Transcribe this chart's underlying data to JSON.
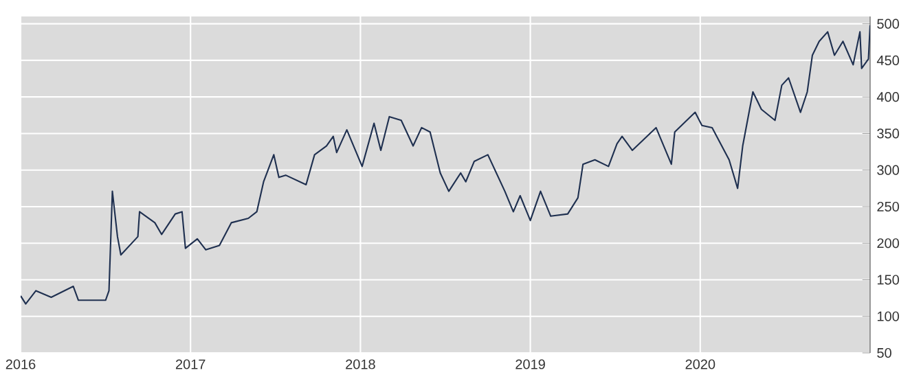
{
  "chart_data": {
    "type": "line",
    "color": "#1f3050",
    "x": [
      2016.0,
      2016.03,
      2016.09,
      2016.18,
      2016.31,
      2016.34,
      2016.5,
      2016.52,
      2016.53,
      2016.54,
      2016.57,
      2016.59,
      2016.69,
      2016.7,
      2016.79,
      2016.83,
      2016.91,
      2016.95,
      2016.97,
      2017.04,
      2017.09,
      2017.17,
      2017.24,
      2017.34,
      2017.39,
      2017.43,
      2017.49,
      2017.52,
      2017.56,
      2017.68,
      2017.73,
      2017.8,
      2017.84,
      2017.86,
      2017.92,
      2018.01,
      2018.08,
      2018.12,
      2018.17,
      2018.24,
      2018.31,
      2018.36,
      2018.41,
      2018.47,
      2018.52,
      2018.59,
      2018.62,
      2018.67,
      2018.75,
      2018.85,
      2018.9,
      2018.94,
      2019.0,
      2019.06,
      2019.12,
      2019.22,
      2019.28,
      2019.31,
      2019.38,
      2019.46,
      2019.51,
      2019.54,
      2019.6,
      2019.74,
      2019.83,
      2019.85,
      2019.97,
      2020.01,
      2020.07,
      2020.17,
      2020.22,
      2020.25,
      2020.31,
      2020.36,
      2020.44,
      2020.48,
      2020.52,
      2020.59,
      2020.63,
      2020.66,
      2020.7,
      2020.75,
      2020.79,
      2020.84,
      2020.9,
      2020.94,
      2020.95,
      2020.99,
      2021.0
    ],
    "values": [
      128,
      117,
      135,
      126,
      141,
      122,
      122,
      135,
      203,
      271,
      209,
      184,
      209,
      243,
      228,
      212,
      240,
      243,
      193,
      206,
      191,
      197,
      228,
      234,
      243,
      284,
      321,
      290,
      293,
      280,
      321,
      333,
      346,
      324,
      355,
      305,
      364,
      327,
      373,
      368,
      333,
      358,
      352,
      296,
      271,
      296,
      284,
      312,
      321,
      271,
      243,
      265,
      231,
      271,
      237,
      240,
      262,
      308,
      314,
      305,
      336,
      346,
      327,
      358,
      308,
      352,
      379,
      361,
      358,
      314,
      275,
      333,
      407,
      383,
      368,
      416,
      426,
      379,
      407,
      457,
      476,
      489,
      457,
      476,
      444,
      489,
      439,
      452,
      498
    ],
    "xlim": [
      2016,
      2021
    ],
    "xticks": [
      2016,
      2017,
      2018,
      2019,
      2020
    ],
    "ylim": [
      50,
      510
    ],
    "yticks": [
      50,
      100,
      150,
      200,
      250,
      300,
      350,
      400,
      450,
      500
    ],
    "grid": true
  }
}
